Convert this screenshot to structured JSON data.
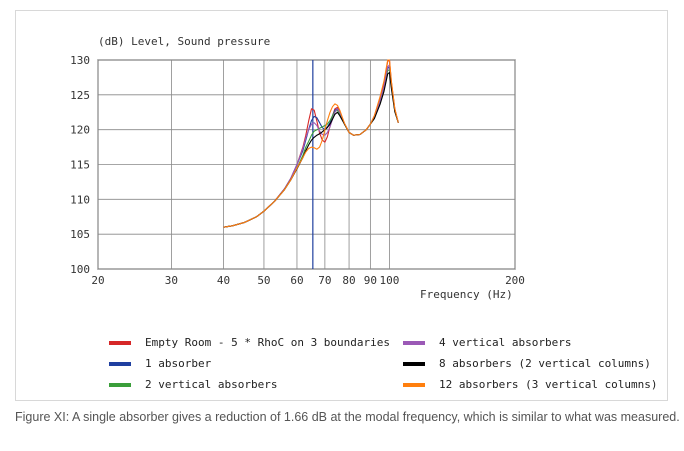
{
  "caption": "Figure XI: A single absorber gives a reduction of 1.66 dB at the modal frequency, which is similar to what was measured.",
  "chart_data": {
    "type": "line",
    "title": "",
    "ylabel": "(dB)  Level, Sound pressure",
    "xlabel": "Frequency  (Hz)",
    "xscale": "log",
    "xlim": [
      20,
      200
    ],
    "ylim": [
      100,
      130
    ],
    "x_ticks": [
      20,
      30,
      40,
      50,
      60,
      70,
      80,
      90,
      100,
      200
    ],
    "x_tick_labels": [
      "20",
      "30",
      "40",
      "50",
      "60",
      "70",
      "80",
      "90",
      "100",
      "200"
    ],
    "y_ticks": [
      100,
      105,
      110,
      115,
      120,
      125,
      130
    ],
    "y_tick_labels": [
      "100",
      "105",
      "110",
      "115",
      "120",
      "125",
      "130"
    ],
    "grid": true,
    "marker_line_x": 65.5,
    "marker_line_color": "#1f3f9f",
    "legend_placement": "bottom",
    "x": [
      40,
      42,
      45,
      48,
      50,
      53,
      56,
      58,
      60,
      62,
      63,
      64,
      65,
      66,
      67,
      68,
      69,
      70,
      71,
      72,
      73,
      74,
      75,
      76,
      78,
      80,
      82,
      85,
      88,
      90,
      92,
      95,
      97,
      99,
      100,
      101,
      103,
      105
    ],
    "series": [
      {
        "name": "Empty Room - 5 * RhoC on 3 boundaries",
        "color": "#d62728",
        "values": [
          106,
          106.2,
          106.7,
          107.5,
          108.3,
          109.7,
          111.5,
          113.0,
          115.0,
          117.5,
          119.2,
          121.2,
          123.0,
          122.8,
          121.2,
          119.5,
          118.5,
          118.2,
          119.0,
          120.5,
          122.0,
          123.0,
          123.2,
          122.5,
          120.8,
          119.6,
          119.2,
          119.3,
          120.0,
          120.8,
          122.0,
          124.5,
          126.7,
          129.8,
          130.0,
          127.0,
          123.0,
          121.0
        ]
      },
      {
        "name": "1 absorber",
        "color": "#1f3fa0",
        "values": [
          106,
          106.2,
          106.7,
          107.5,
          108.3,
          109.7,
          111.5,
          113.0,
          115.0,
          117.0,
          118.5,
          120.0,
          121.3,
          121.9,
          121.7,
          121.0,
          120.3,
          120.0,
          120.4,
          121.0,
          122.0,
          122.8,
          123.0,
          122.4,
          120.8,
          119.6,
          119.2,
          119.3,
          120.0,
          120.8,
          121.8,
          124.0,
          126.0,
          128.8,
          129.0,
          126.5,
          122.8,
          121.0
        ]
      },
      {
        "name": "2 vertical absorbers",
        "color": "#3a9e3a",
        "values": [
          106,
          106.2,
          106.7,
          107.5,
          108.3,
          109.7,
          111.4,
          112.8,
          114.5,
          116.3,
          117.5,
          118.3,
          119.2,
          119.8,
          120.0,
          120.2,
          120.4,
          120.6,
          120.8,
          121.3,
          122.0,
          122.6,
          122.8,
          122.2,
          120.8,
          119.6,
          119.2,
          119.3,
          120.0,
          120.8,
          121.8,
          124.0,
          125.8,
          128.5,
          128.6,
          126.3,
          122.7,
          121.0
        ]
      },
      {
        "name": "4 vertical absorbers",
        "color": "#9b59b6",
        "values": [
          106,
          106.2,
          106.7,
          107.5,
          108.3,
          109.7,
          111.5,
          113.0,
          115.0,
          117.3,
          118.8,
          120.0,
          120.8,
          121.0,
          120.6,
          119.8,
          119.3,
          119.2,
          119.6,
          120.4,
          121.5,
          122.5,
          123.0,
          122.5,
          120.9,
          119.6,
          119.2,
          119.3,
          120.0,
          120.8,
          121.8,
          124.2,
          126.2,
          129.0,
          129.3,
          126.6,
          122.9,
          121.0
        ]
      },
      {
        "name": "8 absorbers (2 vertical columns)",
        "color": "#000000",
        "values": [
          106,
          106.2,
          106.7,
          107.5,
          108.3,
          109.7,
          111.4,
          112.8,
          114.4,
          116.0,
          117.0,
          117.8,
          118.5,
          118.9,
          119.2,
          119.4,
          119.7,
          120.0,
          120.3,
          120.8,
          121.5,
          122.2,
          122.5,
          122.0,
          120.8,
          119.6,
          119.2,
          119.3,
          120.0,
          120.8,
          121.6,
          123.7,
          125.5,
          128.0,
          128.2,
          126.0,
          122.6,
          121.0
        ]
      },
      {
        "name": "12 absorbers (3 vertical columns)",
        "color": "#ff7f0e",
        "values": [
          106,
          106.2,
          106.7,
          107.5,
          108.3,
          109.7,
          111.4,
          112.8,
          114.5,
          116.0,
          116.8,
          117.3,
          117.5,
          117.4,
          117.2,
          117.5,
          118.5,
          120.0,
          121.3,
          122.5,
          123.3,
          123.7,
          123.5,
          122.8,
          120.9,
          119.6,
          119.2,
          119.3,
          120.0,
          120.8,
          122.0,
          124.8,
          127.0,
          130.0,
          130.0,
          127.0,
          123.0,
          121.0
        ]
      }
    ]
  }
}
